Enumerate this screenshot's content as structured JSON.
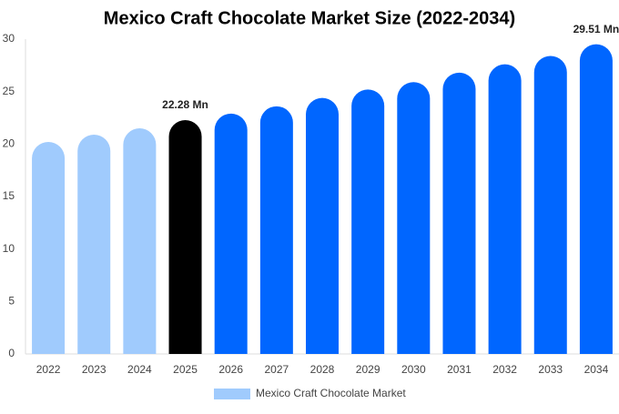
{
  "chart_data": {
    "type": "bar",
    "title": "Mexico Craft Chocolate Market Size (2022-2034)",
    "categories": [
      "2022",
      "2023",
      "2024",
      "2025",
      "2026",
      "2027",
      "2028",
      "2029",
      "2030",
      "2031",
      "2032",
      "2033",
      "2034"
    ],
    "series": [
      {
        "name": "Mexico Craft Chocolate Market",
        "color": "#a0cbfd",
        "colors": [
          "#a0cbfd",
          "#a0cbfd",
          "#a0cbfd",
          "#000000",
          "#0066ff",
          "#0066ff",
          "#0066ff",
          "#0066ff",
          "#0066ff",
          "#0066ff",
          "#0066ff",
          "#0066ff",
          "#0066ff"
        ],
        "values": [
          20.2,
          20.9,
          21.5,
          22.28,
          22.9,
          23.6,
          24.4,
          25.2,
          25.9,
          26.8,
          27.6,
          28.4,
          29.51
        ],
        "value_labels": [
          null,
          null,
          null,
          "22.28 Mn",
          null,
          null,
          null,
          null,
          null,
          null,
          null,
          null,
          "29.51 Mn"
        ]
      }
    ],
    "ylim": [
      0,
      30
    ],
    "yticks": [
      0,
      5,
      10,
      15,
      20,
      25,
      30
    ],
    "grid": false
  }
}
